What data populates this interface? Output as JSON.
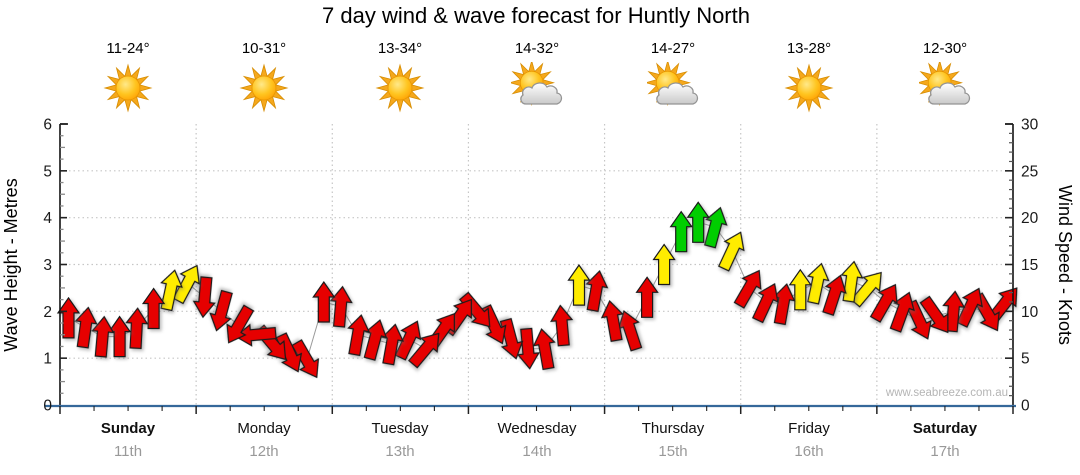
{
  "title": "7 day wind & wave forecast for Huntly North",
  "watermark": "www.seabreeze.com.au",
  "days": [
    {
      "name": "Sunday",
      "date": "11th",
      "temp": "11-24°",
      "icon": "sun",
      "is_weekend": true
    },
    {
      "name": "Monday",
      "date": "12th",
      "temp": "10-31°",
      "icon": "sun",
      "is_weekend": false
    },
    {
      "name": "Tuesday",
      "date": "13th",
      "temp": "13-34°",
      "icon": "sun",
      "is_weekend": false
    },
    {
      "name": "Wednesday",
      "date": "14th",
      "temp": "14-32°",
      "icon": "sun-cloud",
      "is_weekend": false
    },
    {
      "name": "Thursday",
      "date": "15th",
      "temp": "14-27°",
      "icon": "sun-cloud",
      "is_weekend": false
    },
    {
      "name": "Friday",
      "date": "16th",
      "temp": "13-28°",
      "icon": "sun",
      "is_weekend": false
    },
    {
      "name": "Saturday",
      "date": "17th",
      "temp": "12-30°",
      "icon": "sun-cloud",
      "is_weekend": true
    }
  ],
  "chart_data": {
    "type": "wind-arrows",
    "title": "7 day wind & wave forecast for Huntly North",
    "left_axis": {
      "label": "Wave Height - Metres",
      "min": 0,
      "max": 6,
      "ticks": [
        0,
        1,
        2,
        3,
        4,
        5,
        6
      ]
    },
    "right_axis": {
      "label": "Wind Speed - Knots",
      "min": 0,
      "max": 30,
      "ticks": [
        0,
        5,
        10,
        15,
        20,
        25,
        30
      ]
    },
    "gridlines_metres": [
      1,
      2,
      3,
      4,
      5
    ],
    "slots_per_day": 8,
    "colors": {
      "red": "#e60000",
      "yellow": "#ffec00",
      "green": "#00ce00",
      "axis_blue": "#35689a",
      "grid": "#c6c6c6",
      "date_gray": "#999999",
      "watermark_gray": "#b5b5b5"
    },
    "arrows": [
      {
        "d": 0,
        "s": 0,
        "kn": 9.3,
        "dir": 0,
        "c": "red"
      },
      {
        "d": 0,
        "s": 1,
        "kn": 8.3,
        "dir": 8,
        "c": "red"
      },
      {
        "d": 0,
        "s": 2,
        "kn": 7.3,
        "dir": 5,
        "c": "red"
      },
      {
        "d": 0,
        "s": 3,
        "kn": 7.3,
        "dir": 0,
        "c": "red"
      },
      {
        "d": 0,
        "s": 4,
        "kn": 8.2,
        "dir": 3,
        "c": "red"
      },
      {
        "d": 0,
        "s": 5,
        "kn": 10.3,
        "dir": 0,
        "c": "red"
      },
      {
        "d": 0,
        "s": 6,
        "kn": 12.3,
        "dir": 12,
        "c": "yellow"
      },
      {
        "d": 0,
        "s": 7,
        "kn": 13,
        "dir": 28,
        "c": "yellow"
      },
      {
        "d": 1,
        "s": 0,
        "kn": 11.5,
        "dir": 185,
        "c": "red"
      },
      {
        "d": 1,
        "s": 1,
        "kn": 10,
        "dir": 195,
        "c": "red"
      },
      {
        "d": 1,
        "s": 2,
        "kn": 8.5,
        "dir": 210,
        "c": "red"
      },
      {
        "d": 1,
        "s": 3,
        "kn": 7.5,
        "dir": 265,
        "c": "red"
      },
      {
        "d": 1,
        "s": 4,
        "kn": 6.5,
        "dir": 140,
        "c": "red"
      },
      {
        "d": 1,
        "s": 5,
        "kn": 5.5,
        "dir": 155,
        "c": "red"
      },
      {
        "d": 1,
        "s": 6,
        "kn": 4.8,
        "dir": 150,
        "c": "red"
      },
      {
        "d": 1,
        "s": 7,
        "kn": 11,
        "dir": 0,
        "c": "red"
      },
      {
        "d": 2,
        "s": 0,
        "kn": 10.5,
        "dir": 5,
        "c": "red"
      },
      {
        "d": 2,
        "s": 1,
        "kn": 7.5,
        "dir": 10,
        "c": "red"
      },
      {
        "d": 2,
        "s": 2,
        "kn": 7,
        "dir": 15,
        "c": "red"
      },
      {
        "d": 2,
        "s": 3,
        "kn": 6.5,
        "dir": 10,
        "c": "red"
      },
      {
        "d": 2,
        "s": 4,
        "kn": 7,
        "dir": 25,
        "c": "red"
      },
      {
        "d": 2,
        "s": 5,
        "kn": 6,
        "dir": 40,
        "c": "red"
      },
      {
        "d": 2,
        "s": 6,
        "kn": 8,
        "dir": 35,
        "c": "red"
      },
      {
        "d": 2,
        "s": 7,
        "kn": 9.5,
        "dir": 35,
        "c": "red"
      },
      {
        "d": 3,
        "s": 0,
        "kn": 10,
        "dir": 140,
        "c": "red"
      },
      {
        "d": 3,
        "s": 1,
        "kn": 8.5,
        "dir": 155,
        "c": "red"
      },
      {
        "d": 3,
        "s": 2,
        "kn": 7,
        "dir": 165,
        "c": "red"
      },
      {
        "d": 3,
        "s": 3,
        "kn": 6,
        "dir": 175,
        "c": "red"
      },
      {
        "d": 3,
        "s": 4,
        "kn": 6,
        "dir": -10,
        "c": "red"
      },
      {
        "d": 3,
        "s": 5,
        "kn": 8.5,
        "dir": -5,
        "c": "red"
      },
      {
        "d": 3,
        "s": 6,
        "kn": 12.8,
        "dir": 0,
        "c": "yellow"
      },
      {
        "d": 3,
        "s": 7,
        "kn": 12.2,
        "dir": 10,
        "c": "red"
      },
      {
        "d": 4,
        "s": 0,
        "kn": 9,
        "dir": -10,
        "c": "red"
      },
      {
        "d": 4,
        "s": 1,
        "kn": 8,
        "dir": -18,
        "c": "red"
      },
      {
        "d": 4,
        "s": 2,
        "kn": 11.5,
        "dir": 0,
        "c": "red"
      },
      {
        "d": 4,
        "s": 3,
        "kn": 15,
        "dir": 0,
        "c": "yellow"
      },
      {
        "d": 4,
        "s": 4,
        "kn": 18.5,
        "dir": 0,
        "c": "green"
      },
      {
        "d": 4,
        "s": 5,
        "kn": 19.5,
        "dir": 0,
        "c": "green"
      },
      {
        "d": 4,
        "s": 6,
        "kn": 19,
        "dir": 15,
        "c": "green"
      },
      {
        "d": 4,
        "s": 7,
        "kn": 16.5,
        "dir": 25,
        "c": "yellow"
      },
      {
        "d": 5,
        "s": 0,
        "kn": 12.5,
        "dir": 30,
        "c": "red"
      },
      {
        "d": 5,
        "s": 1,
        "kn": 11,
        "dir": 25,
        "c": "red"
      },
      {
        "d": 5,
        "s": 2,
        "kn": 10.8,
        "dir": 10,
        "c": "red"
      },
      {
        "d": 5,
        "s": 3,
        "kn": 12.3,
        "dir": 0,
        "c": "yellow"
      },
      {
        "d": 5,
        "s": 4,
        "kn": 13,
        "dir": 12,
        "c": "yellow"
      },
      {
        "d": 5,
        "s": 5,
        "kn": 11.8,
        "dir": 18,
        "c": "red"
      },
      {
        "d": 5,
        "s": 6,
        "kn": 13.2,
        "dir": 8,
        "c": "yellow"
      },
      {
        "d": 5,
        "s": 7,
        "kn": 12.5,
        "dir": 40,
        "c": "yellow"
      },
      {
        "d": 6,
        "s": 0,
        "kn": 11,
        "dir": 30,
        "c": "red"
      },
      {
        "d": 6,
        "s": 1,
        "kn": 10,
        "dir": 20,
        "c": "red"
      },
      {
        "d": 6,
        "s": 2,
        "kn": 9,
        "dir": 155,
        "c": "red"
      },
      {
        "d": 6,
        "s": 3,
        "kn": 9.5,
        "dir": 145,
        "c": "red"
      },
      {
        "d": 6,
        "s": 4,
        "kn": 10,
        "dir": 5,
        "c": "red"
      },
      {
        "d": 6,
        "s": 5,
        "kn": 10.5,
        "dir": 25,
        "c": "red"
      },
      {
        "d": 6,
        "s": 6,
        "kn": 9.8,
        "dir": 150,
        "c": "red"
      },
      {
        "d": 6,
        "s": 7,
        "kn": 10.8,
        "dir": 38,
        "c": "red"
      }
    ]
  }
}
